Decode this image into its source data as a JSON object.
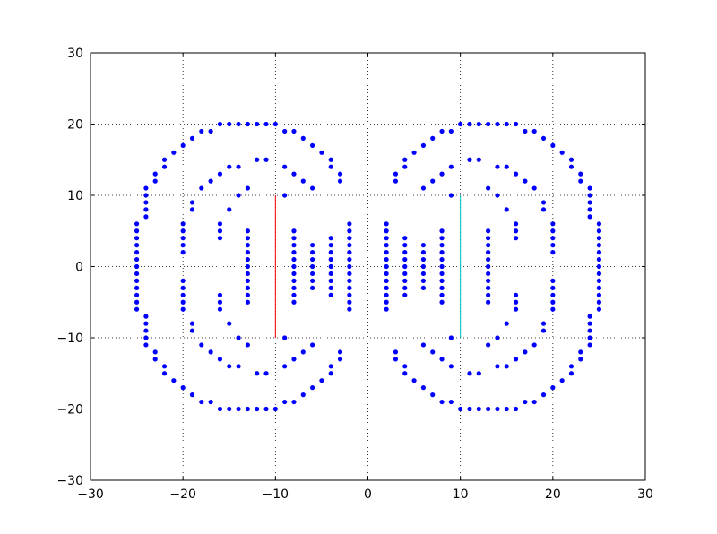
{
  "chart_data": {
    "type": "scatter",
    "color": "#0000ff",
    "grid": true,
    "xlim": [
      -30,
      30
    ],
    "ylim": [
      -30,
      30
    ],
    "xticks": [
      {
        "value": -30,
        "label": "−30"
      },
      {
        "value": -20,
        "label": "−20"
      },
      {
        "value": -10,
        "label": "−10"
      },
      0,
      10,
      20,
      30
    ],
    "yticks": [
      {
        "value": -30,
        "label": "−30"
      },
      {
        "value": -20,
        "label": "−20"
      },
      {
        "value": -10,
        "label": "−10"
      },
      0,
      10,
      20,
      30
    ],
    "x": [
      -16,
      -15,
      -14,
      -13,
      -12,
      -11,
      -10,
      -18,
      -17,
      -9,
      -8,
      -19,
      -7,
      -20,
      -6,
      -21,
      -5,
      -22,
      -4,
      -22,
      -4,
      -23,
      -3,
      -23,
      -3,
      -24,
      -24,
      -24,
      -24,
      -24,
      -25,
      -25,
      -25,
      -25,
      -25,
      -25,
      -12,
      -11,
      -15,
      -14,
      -9,
      -16,
      -8,
      -17,
      -7,
      -18,
      -6,
      -19,
      -19,
      -13,
      -14,
      -9,
      -15,
      -20,
      -20,
      -20,
      -20,
      -20,
      -16,
      -16,
      -16,
      -13,
      -13,
      -13,
      -13,
      -13,
      -8,
      -8,
      -8,
      -8,
      -8,
      -6,
      -6,
      -6,
      -4,
      -4,
      -4,
      -4,
      -2,
      -2,
      -2,
      -2,
      -2,
      -2,
      -25,
      -13,
      -8,
      -6,
      -4,
      -2,
      -16,
      -15,
      -14,
      -13,
      -12,
      -11,
      -10,
      -18,
      -17,
      -9,
      -8,
      -19,
      -7,
      -20,
      -6,
      -21,
      -5,
      -22,
      -4,
      -22,
      -4,
      -23,
      -3,
      -23,
      -3,
      -24,
      -24,
      -24,
      -24,
      -24,
      -25,
      -25,
      -25,
      -25,
      -25,
      -25,
      -12,
      -11,
      -15,
      -14,
      -9,
      -16,
      -8,
      -17,
      -7,
      -18,
      -6,
      -19,
      -19,
      -13,
      -14,
      -9,
      -15,
      -20,
      -20,
      -20,
      -20,
      -20,
      -16,
      -16,
      -16,
      -13,
      -13,
      -13,
      -13,
      -13,
      -8,
      -8,
      -8,
      -8,
      -8,
      -6,
      -6,
      -6,
      -4,
      -4,
      -4,
      -4,
      -2,
      -2,
      -2,
      -2,
      -2,
      -2,
      16,
      15,
      14,
      13,
      12,
      11,
      10,
      18,
      17,
      9,
      8,
      19,
      7,
      20,
      6,
      21,
      5,
      22,
      4,
      22,
      4,
      23,
      3,
      23,
      3,
      24,
      24,
      24,
      24,
      24,
      25,
      25,
      25,
      25,
      25,
      25,
      12,
      11,
      15,
      14,
      9,
      16,
      8,
      17,
      7,
      18,
      6,
      19,
      19,
      13,
      14,
      9,
      15,
      20,
      20,
      20,
      20,
      20,
      16,
      16,
      16,
      13,
      13,
      13,
      13,
      13,
      8,
      8,
      8,
      8,
      8,
      6,
      6,
      6,
      4,
      4,
      4,
      4,
      2,
      2,
      2,
      2,
      2,
      2,
      25,
      13,
      8,
      6,
      4,
      2,
      16,
      15,
      14,
      13,
      12,
      11,
      10,
      18,
      17,
      9,
      8,
      19,
      7,
      20,
      6,
      21,
      5,
      22,
      4,
      22,
      4,
      23,
      3,
      23,
      3,
      24,
      24,
      24,
      24,
      24,
      25,
      25,
      25,
      25,
      25,
      25,
      12,
      11,
      15,
      14,
      9,
      16,
      8,
      17,
      7,
      18,
      6,
      19,
      19,
      13,
      14,
      9,
      15,
      20,
      20,
      20,
      20,
      20,
      16,
      16,
      16,
      13,
      13,
      13,
      13,
      13,
      8,
      8,
      8,
      8,
      8,
      6,
      6,
      6,
      4,
      4,
      4,
      4,
      2,
      2,
      2,
      2,
      2,
      2
    ],
    "values": [
      20,
      20,
      20,
      20,
      20,
      20,
      20,
      19,
      19,
      19,
      19,
      18,
      18,
      17,
      17,
      16,
      16,
      15,
      15,
      14,
      14,
      13,
      13,
      12,
      12,
      11,
      10,
      9,
      8,
      7,
      6,
      5,
      4,
      3,
      2,
      1,
      15,
      15,
      14,
      14,
      14,
      13,
      13,
      12,
      12,
      11,
      11,
      9,
      8,
      11,
      10,
      10,
      8,
      6,
      5,
      4,
      3,
      2,
      6,
      5,
      4,
      5,
      4,
      3,
      2,
      1,
      5,
      4,
      3,
      2,
      1,
      3,
      2,
      1,
      4,
      3,
      2,
      1,
      6,
      5,
      4,
      3,
      2,
      1,
      0,
      0,
      0,
      0,
      0,
      0,
      -20,
      -20,
      -20,
      -20,
      -20,
      -20,
      -20,
      -19,
      -19,
      -19,
      -19,
      -18,
      -18,
      -17,
      -17,
      -16,
      -16,
      -15,
      -15,
      -14,
      -14,
      -13,
      -13,
      -12,
      -12,
      -11,
      -10,
      -9,
      -8,
      -7,
      -6,
      -5,
      -4,
      -3,
      -2,
      -1,
      -15,
      -15,
      -14,
      -14,
      -14,
      -13,
      -13,
      -12,
      -12,
      -11,
      -11,
      -9,
      -8,
      -11,
      -10,
      -10,
      -8,
      -6,
      -5,
      -4,
      -3,
      -2,
      -6,
      -5,
      -4,
      -5,
      -4,
      -3,
      -2,
      -1,
      -5,
      -4,
      -3,
      -2,
      -1,
      -3,
      -2,
      -1,
      -4,
      -3,
      -2,
      -1,
      -6,
      -5,
      -4,
      -3,
      -2,
      -1,
      20,
      20,
      20,
      20,
      20,
      20,
      20,
      19,
      19,
      19,
      19,
      18,
      18,
      17,
      17,
      16,
      16,
      15,
      15,
      14,
      14,
      13,
      13,
      12,
      12,
      11,
      10,
      9,
      8,
      7,
      6,
      5,
      4,
      3,
      2,
      1,
      15,
      15,
      14,
      14,
      14,
      13,
      13,
      12,
      12,
      11,
      11,
      9,
      8,
      11,
      10,
      10,
      8,
      6,
      5,
      4,
      3,
      2,
      6,
      5,
      4,
      5,
      4,
      3,
      2,
      1,
      5,
      4,
      3,
      2,
      1,
      3,
      2,
      1,
      4,
      3,
      2,
      1,
      6,
      5,
      4,
      3,
      2,
      1,
      0,
      0,
      0,
      0,
      0,
      0,
      -20,
      -20,
      -20,
      -20,
      -20,
      -20,
      -20,
      -19,
      -19,
      -19,
      -19,
      -18,
      -18,
      -17,
      -17,
      -16,
      -16,
      -15,
      -15,
      -14,
      -14,
      -13,
      -13,
      -12,
      -12,
      -11,
      -10,
      -9,
      -8,
      -7,
      -6,
      -5,
      -4,
      -3,
      -2,
      -1,
      -15,
      -15,
      -14,
      -14,
      -14,
      -13,
      -13,
      -12,
      -12,
      -11,
      -11,
      -9,
      -8,
      -11,
      -10,
      -10,
      -8,
      -6,
      -5,
      -4,
      -3,
      -2,
      -6,
      -5,
      -4,
      -5,
      -4,
      -3,
      -2,
      -1,
      -5,
      -4,
      -3,
      -2,
      -1,
      -3,
      -2,
      -1,
      -4,
      -3,
      -2,
      -1,
      -6,
      -5,
      -4,
      -3,
      -2,
      -1
    ],
    "lines": [
      {
        "color": "#ff0000",
        "x": [
          -10,
          -10
        ],
        "values": [
          -10,
          10
        ]
      },
      {
        "color": "#00bfbf",
        "x": [
          10,
          10
        ],
        "values": [
          -10,
          10
        ]
      }
    ]
  }
}
